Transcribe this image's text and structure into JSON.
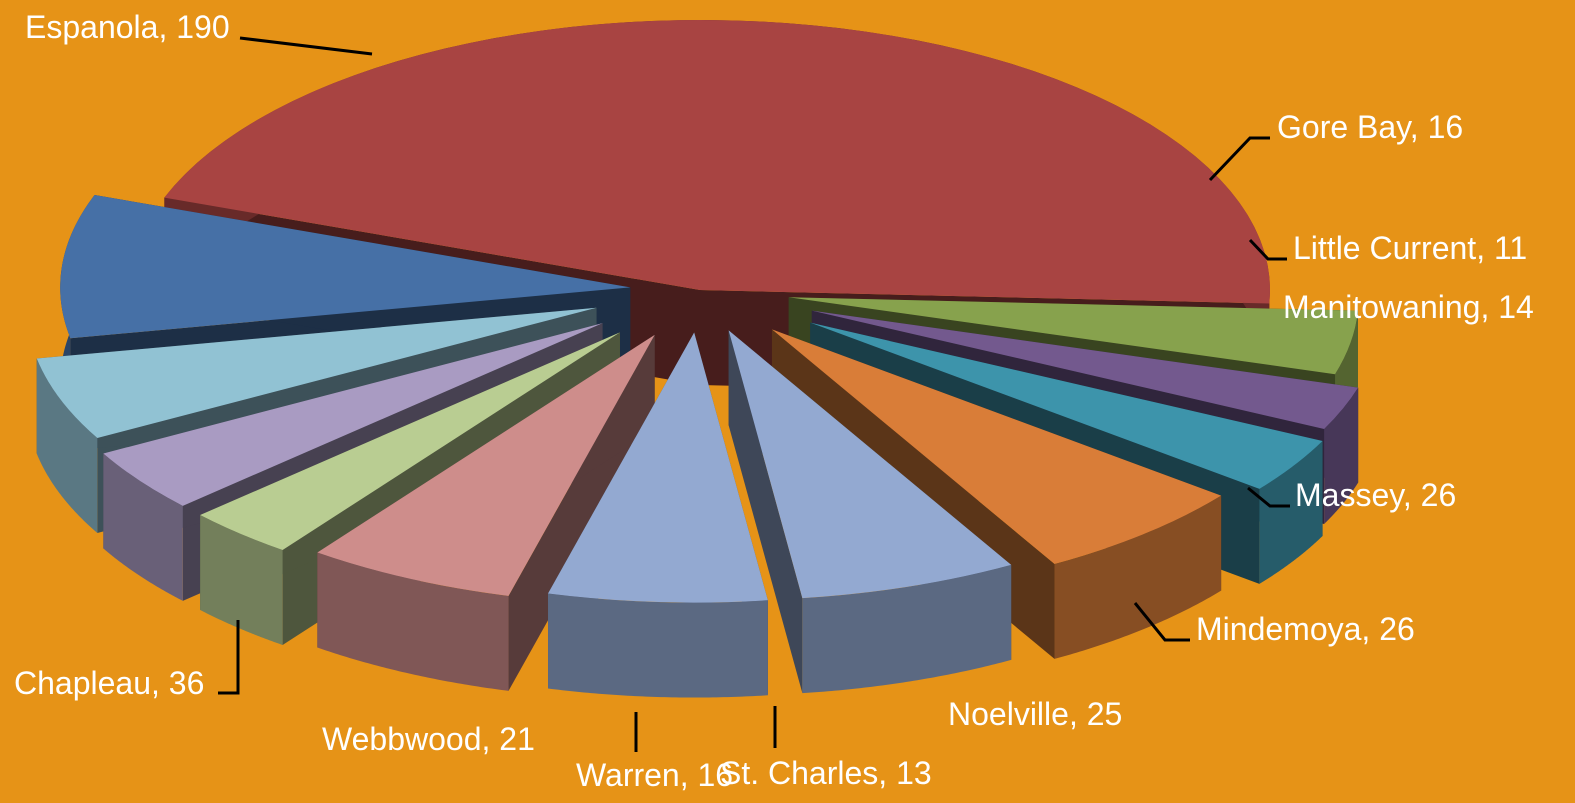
{
  "chart_data": {
    "type": "pie",
    "variant": "3d-exploded",
    "title": "",
    "label_format": "{name}, {value}",
    "slices": [
      {
        "name": "Espanola",
        "value": 190,
        "color": "#A84442"
      },
      {
        "name": "Gore Bay",
        "value": 16,
        "color": "#87A24D"
      },
      {
        "name": "Little Current",
        "value": 11,
        "color": "#73598E"
      },
      {
        "name": "Manitowaning",
        "value": 14,
        "color": "#3D94AB"
      },
      {
        "name": "",
        "value": 26,
        "color": "#D97D38"
      },
      {
        "name": "Massey",
        "value": 26,
        "color": "#93A9D1"
      },
      {
        "name": "Mindemoya",
        "value": 26,
        "color": "#93A9D1"
      },
      {
        "name": "Noelville",
        "value": 25,
        "color": "#CE8D8B"
      },
      {
        "name": "St. Charles",
        "value": 13,
        "color": "#B9CD92"
      },
      {
        "name": "Warren",
        "value": 16,
        "color": "#A99BC2"
      },
      {
        "name": "Webbwood",
        "value": 21,
        "color": "#91C2D3"
      },
      {
        "name": "Chapleau",
        "value": 36,
        "color": "#4670A6"
      }
    ],
    "label_color": "#FFFFFF",
    "leader_line_color": "#000000",
    "background": "#E69317",
    "legend": "none"
  }
}
